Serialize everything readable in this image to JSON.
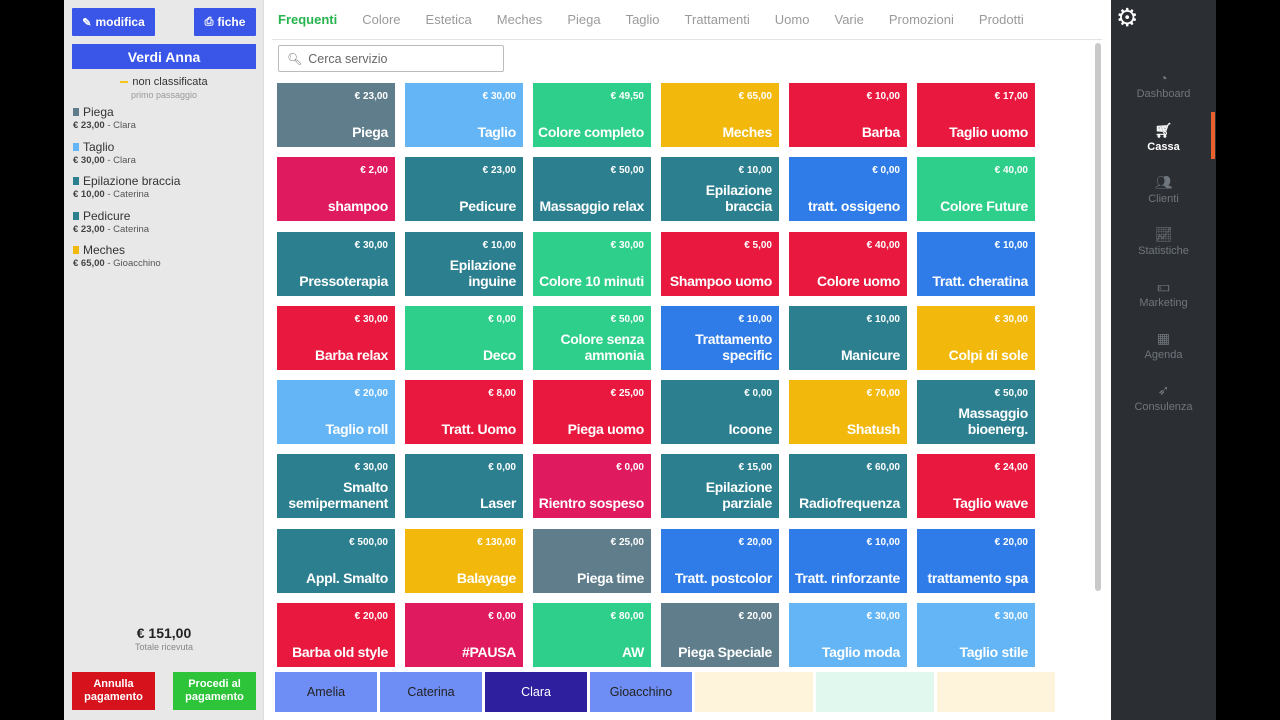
{
  "left": {
    "edit_label": "modifica",
    "fiche_label": "fiche",
    "client_name": "Verdi Anna",
    "classification": "non classificata",
    "visit_note": "primo passaggio",
    "items": [
      {
        "name": "Piega",
        "price": "€ 23,00",
        "operator": "Clara",
        "color": "#5f7d8a"
      },
      {
        "name": "Taglio",
        "price": "€ 30,00",
        "operator": "Clara",
        "color": "#64b5f6"
      },
      {
        "name": "Epilazione braccia",
        "price": "€ 10,00",
        "operator": "Caterina",
        "color": "#2c7f8f"
      },
      {
        "name": "Pedicure",
        "price": "€ 23,00",
        "operator": "Caterina",
        "color": "#2c7f8f"
      },
      {
        "name": "Meches",
        "price": "€ 65,00",
        "operator": "Gioacchino",
        "color": "#f2b80c"
      }
    ],
    "total": "€ 151,00",
    "total_label": "Totale ricevuta",
    "cancel_label": "Annulla pagamento",
    "proceed_label": "Procedi al pagamento",
    "cancel_color": "#d6121d",
    "proceed_color": "#2ec43a"
  },
  "tabs": [
    "Frequenti",
    "Colore",
    "Estetica",
    "Meches",
    "Piega",
    "Taglio",
    "Trattamenti",
    "Uomo",
    "Varie",
    "Promozioni",
    "Prodotti"
  ],
  "search": {
    "placeholder": "Cerca servizio",
    "icon": "search-icon"
  },
  "services": [
    {
      "name": "Piega",
      "price": "€ 23,00",
      "color": "#5f7d8a"
    },
    {
      "name": "Taglio",
      "price": "€ 30,00",
      "color": "#64b5f6"
    },
    {
      "name": "Colore completo",
      "price": "€ 49,50",
      "color": "#2ecf8a"
    },
    {
      "name": "Meches",
      "price": "€ 65,00",
      "color": "#f2b80c"
    },
    {
      "name": "Barba",
      "price": "€ 10,00",
      "color": "#e8183e"
    },
    {
      "name": "Taglio uomo",
      "price": "€ 17,00",
      "color": "#e8183e"
    },
    {
      "name": "shampoo",
      "price": "€ 2,00",
      "color": "#e01a5e"
    },
    {
      "name": "Pedicure",
      "price": "€ 23,00",
      "color": "#2c7f8f"
    },
    {
      "name": "Massaggio relax",
      "price": "€ 50,00",
      "color": "#2c7f8f"
    },
    {
      "name": "Epilazione braccia",
      "price": "€ 10,00",
      "color": "#2c7f8f"
    },
    {
      "name": "tratt. ossigeno",
      "price": "€ 0,00",
      "color": "#2f7ce8"
    },
    {
      "name": "Colore Future",
      "price": "€ 40,00",
      "color": "#2ecf8a"
    },
    {
      "name": "Pressoterapia",
      "price": "€ 30,00",
      "color": "#2c7f8f"
    },
    {
      "name": "Epilazione inguine",
      "price": "€ 10,00",
      "color": "#2c7f8f"
    },
    {
      "name": "Colore 10 minuti",
      "price": "€ 30,00",
      "color": "#2ecf8a"
    },
    {
      "name": "Shampoo uomo",
      "price": "€ 5,00",
      "color": "#e8183e"
    },
    {
      "name": "Colore uomo",
      "price": "€ 40,00",
      "color": "#e8183e"
    },
    {
      "name": "Tratt. cheratina",
      "price": "€ 10,00",
      "color": "#2f7ce8"
    },
    {
      "name": "Barba relax",
      "price": "€ 30,00",
      "color": "#e8183e"
    },
    {
      "name": "Deco",
      "price": "€ 0,00",
      "color": "#2ecf8a"
    },
    {
      "name": "Colore senza ammonia",
      "price": "€ 50,00",
      "color": "#2ecf8a"
    },
    {
      "name": "Trattamento specific",
      "price": "€ 10,00",
      "color": "#2f7ce8"
    },
    {
      "name": "Manicure",
      "price": "€ 10,00",
      "color": "#2c7f8f"
    },
    {
      "name": "Colpi di sole",
      "price": "€ 30,00",
      "color": "#f2b80c"
    },
    {
      "name": "Taglio roll",
      "price": "€ 20,00",
      "color": "#64b5f6"
    },
    {
      "name": "Tratt. Uomo",
      "price": "€ 8,00",
      "color": "#e8183e"
    },
    {
      "name": "Piega uomo",
      "price": "€ 25,00",
      "color": "#e8183e"
    },
    {
      "name": "Icoone",
      "price": "€ 0,00",
      "color": "#2c7f8f"
    },
    {
      "name": "Shatush",
      "price": "€ 70,00",
      "color": "#f2b80c"
    },
    {
      "name": "Massaggio bioenerg.",
      "price": "€ 50,00",
      "color": "#2c7f8f"
    },
    {
      "name": "Smalto semipermanent",
      "price": "€ 30,00",
      "color": "#2c7f8f"
    },
    {
      "name": "Laser",
      "price": "€ 0,00",
      "color": "#2c7f8f"
    },
    {
      "name": "Rientro sospeso",
      "price": "€ 0,00",
      "color": "#e01a5e"
    },
    {
      "name": "Epilazione parziale",
      "price": "€ 15,00",
      "color": "#2c7f8f"
    },
    {
      "name": "Radiofrequenza",
      "price": "€ 60,00",
      "color": "#2c7f8f"
    },
    {
      "name": "Taglio wave",
      "price": "€ 24,00",
      "color": "#e8183e"
    },
    {
      "name": "Appl. Smalto",
      "price": "€ 500,00",
      "color": "#2c7f8f"
    },
    {
      "name": "Balayage",
      "price": "€ 130,00",
      "color": "#f2b80c"
    },
    {
      "name": "Piega time",
      "price": "€ 25,00",
      "color": "#5f7d8a"
    },
    {
      "name": "Tratt. postcolor",
      "price": "€ 20,00",
      "color": "#2f7ce8"
    },
    {
      "name": "Tratt. rinforzante",
      "price": "€ 10,00",
      "color": "#2f7ce8"
    },
    {
      "name": "trattamento spa",
      "price": "€ 20,00",
      "color": "#2f7ce8"
    },
    {
      "name": "Barba old style",
      "price": "€ 20,00",
      "color": "#e8183e"
    },
    {
      "name": "#PAUSA",
      "price": "€ 0,00",
      "color": "#e01a5e"
    },
    {
      "name": "AW",
      "price": "€ 80,00",
      "color": "#2ecf8a"
    },
    {
      "name": "Piega Speciale",
      "price": "€ 20,00",
      "color": "#5f7d8a"
    },
    {
      "name": "Taglio moda",
      "price": "€ 30,00",
      "color": "#64b5f6"
    },
    {
      "name": "Taglio stile",
      "price": "€ 30,00",
      "color": "#64b5f6"
    }
  ],
  "operators": [
    {
      "name": "Amelia",
      "color": "#6f8ef5"
    },
    {
      "name": "Caterina",
      "color": "#6f8ef5"
    },
    {
      "name": "Clara",
      "color": "#2e1f9e"
    },
    {
      "name": "Gioacchino",
      "color": "#6f8ef5"
    }
  ],
  "ghost_tiles": [
    "#f2b80c",
    "#2ecf8a",
    "#f2b80c"
  ],
  "nav": {
    "settings_icon": "gear-icon",
    "items": [
      {
        "label": "Dashboard",
        "icon": "dashboard-icon"
      },
      {
        "label": "Cassa",
        "icon": "cart-icon"
      },
      {
        "label": "Clienti",
        "icon": "users-icon"
      },
      {
        "label": "Statistiche",
        "icon": "chart-icon"
      },
      {
        "label": "Marketing",
        "icon": "money-icon"
      },
      {
        "label": "Agenda",
        "icon": "calendar-icon"
      },
      {
        "label": "Consulenza",
        "icon": "rocket-icon"
      }
    ],
    "active": "Cassa",
    "accent": "#e8612c"
  }
}
